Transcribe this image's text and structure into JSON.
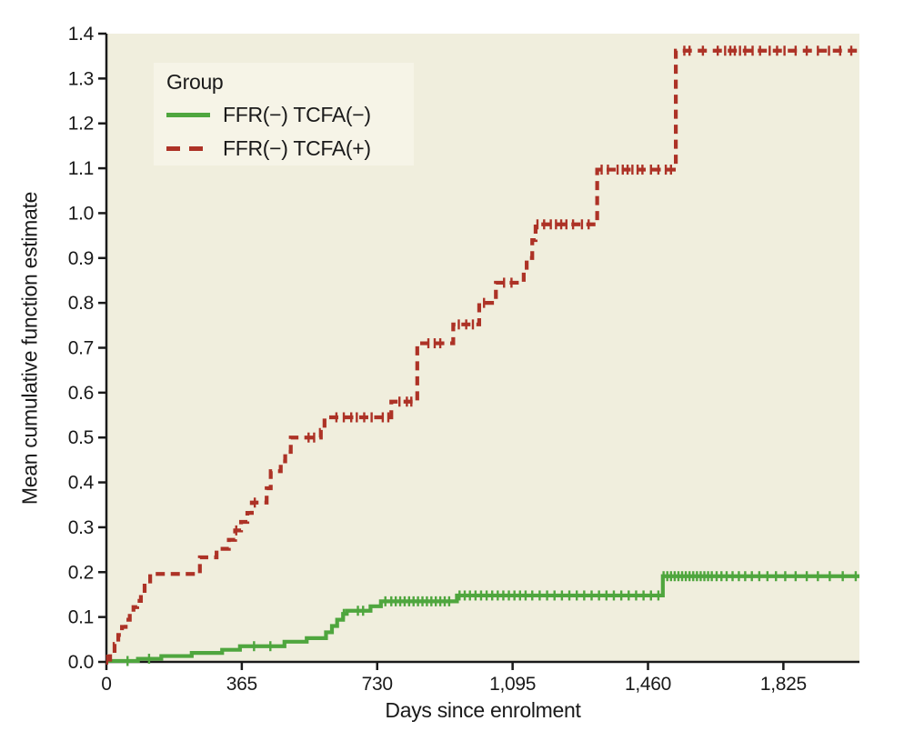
{
  "figure": {
    "y_axis_title": "Mean cumulative function estimate",
    "x_axis_title": "Days since enrolment"
  },
  "legend": {
    "title": "Group",
    "items": [
      {
        "label": "FFR(−) TCFA(−)",
        "line": "solid",
        "color": "#4fa63e"
      },
      {
        "label": "FFR(−) TCFA(+)",
        "line": "dashed",
        "color": "#ad3226"
      }
    ]
  },
  "colors": {
    "plot_background": "#f0eedd",
    "legend_background": "#f6f4e7",
    "axis": "#1a1a1a",
    "green_series": "#4fa63e",
    "red_series": "#ad3226",
    "page_background": "#ffffff"
  },
  "chart_data": {
    "type": "line",
    "subtype": "step",
    "title": "",
    "xlabel": "Days since enrolment",
    "ylabel": "Mean cumulative function estimate",
    "xlim": [
      0,
      2030
    ],
    "ylim": [
      0,
      1.4
    ],
    "grid": false,
    "legend_position": "upper-left-inside",
    "x_ticks": [
      {
        "value": 0,
        "label": "0"
      },
      {
        "value": 365,
        "label": "365"
      },
      {
        "value": 730,
        "label": "730"
      },
      {
        "value": 1095,
        "label": "1,095"
      },
      {
        "value": 1460,
        "label": "1,460"
      },
      {
        "value": 1825,
        "label": "1,825"
      }
    ],
    "y_ticks": [
      {
        "value": 0.0,
        "label": "0.0"
      },
      {
        "value": 0.1,
        "label": "0.1"
      },
      {
        "value": 0.2,
        "label": "0.2"
      },
      {
        "value": 0.3,
        "label": "0.3"
      },
      {
        "value": 0.4,
        "label": "0.4"
      },
      {
        "value": 0.5,
        "label": "0.5"
      },
      {
        "value": 0.6,
        "label": "0.6"
      },
      {
        "value": 0.7,
        "label": "0.7"
      },
      {
        "value": 0.8,
        "label": "0.8"
      },
      {
        "value": 0.9,
        "label": "0.9"
      },
      {
        "value": 1.0,
        "label": "1.0"
      },
      {
        "value": 1.1,
        "label": "1.1"
      },
      {
        "value": 1.2,
        "label": "1.2"
      },
      {
        "value": 1.3,
        "label": "1.3"
      },
      {
        "value": 1.4,
        "label": "1.4"
      }
    ],
    "series": [
      {
        "name": "FFR(−) TCFA(−)",
        "color": "#4fa63e",
        "line": "solid",
        "steps": [
          [
            0,
            0.002
          ],
          [
            85,
            0.007
          ],
          [
            148,
            0.013
          ],
          [
            230,
            0.02
          ],
          [
            312,
            0.027
          ],
          [
            360,
            0.035
          ],
          [
            480,
            0.045
          ],
          [
            540,
            0.053
          ],
          [
            592,
            0.066
          ],
          [
            608,
            0.08
          ],
          [
            622,
            0.094
          ],
          [
            638,
            0.107
          ],
          [
            648,
            0.114
          ],
          [
            712,
            0.124
          ],
          [
            740,
            0.135
          ],
          [
            945,
            0.148
          ],
          [
            1500,
            0.191
          ]
        ],
        "censor_days": [
          57,
          115,
          398,
          442,
          640,
          678,
          692,
          752,
          768,
          780,
          792,
          804,
          816,
          828,
          840,
          852,
          864,
          876,
          888,
          900,
          912,
          924,
          952,
          966,
          980,
          995,
          1010,
          1025,
          1040,
          1055,
          1070,
          1085,
          1100,
          1115,
          1130,
          1148,
          1168,
          1188,
          1208,
          1228,
          1248,
          1268,
          1288,
          1308,
          1328,
          1348,
          1368,
          1388,
          1408,
          1428,
          1448,
          1468,
          1488,
          1502,
          1512,
          1522,
          1532,
          1542,
          1552,
          1562,
          1572,
          1582,
          1592,
          1602,
          1612,
          1622,
          1632,
          1645,
          1658,
          1672,
          1688,
          1705,
          1722,
          1740,
          1760,
          1782,
          1805,
          1830,
          1858,
          1888,
          1918,
          1950,
          1985,
          2020
        ]
      },
      {
        "name": "FFR(−) TCFA(+)",
        "color": "#ad3226",
        "line": "dashed",
        "steps": [
          [
            0,
            0.005
          ],
          [
            10,
            0.02
          ],
          [
            22,
            0.04
          ],
          [
            32,
            0.06
          ],
          [
            42,
            0.078
          ],
          [
            52,
            0.094
          ],
          [
            63,
            0.108
          ],
          [
            73,
            0.122
          ],
          [
            83,
            0.136
          ],
          [
            93,
            0.152
          ],
          [
            103,
            0.17
          ],
          [
            118,
            0.196
          ],
          [
            252,
            0.233
          ],
          [
            297,
            0.252
          ],
          [
            330,
            0.272
          ],
          [
            347,
            0.293
          ],
          [
            363,
            0.312
          ],
          [
            380,
            0.332
          ],
          [
            392,
            0.355
          ],
          [
            432,
            0.387
          ],
          [
            443,
            0.425
          ],
          [
            470,
            0.447
          ],
          [
            482,
            0.468
          ],
          [
            497,
            0.5
          ],
          [
            578,
            0.517
          ],
          [
            588,
            0.545
          ],
          [
            768,
            0.58
          ],
          [
            838,
            0.71
          ],
          [
            935,
            0.752
          ],
          [
            1005,
            0.8
          ],
          [
            1050,
            0.845
          ],
          [
            1125,
            0.872
          ],
          [
            1133,
            0.9
          ],
          [
            1148,
            0.94
          ],
          [
            1157,
            0.975
          ],
          [
            1323,
            1.097
          ],
          [
            1535,
            1.362
          ]
        ],
        "censor_days": [
          2,
          350,
          400,
          545,
          560,
          620,
          640,
          660,
          675,
          695,
          715,
          745,
          760,
          790,
          810,
          822,
          868,
          885,
          900,
          950,
          970,
          988,
          1018,
          1072,
          1092,
          1162,
          1180,
          1198,
          1212,
          1226,
          1240,
          1258,
          1282,
          1300,
          1335,
          1352,
          1378,
          1392,
          1405,
          1418,
          1432,
          1445,
          1468,
          1488,
          1508,
          1522,
          1558,
          1572,
          1608,
          1648,
          1668,
          1682,
          1694,
          1708,
          1722,
          1742,
          1762,
          1788,
          1808,
          1828,
          1858,
          1888,
          1918,
          1948,
          1978,
          2008
        ]
      }
    ]
  }
}
